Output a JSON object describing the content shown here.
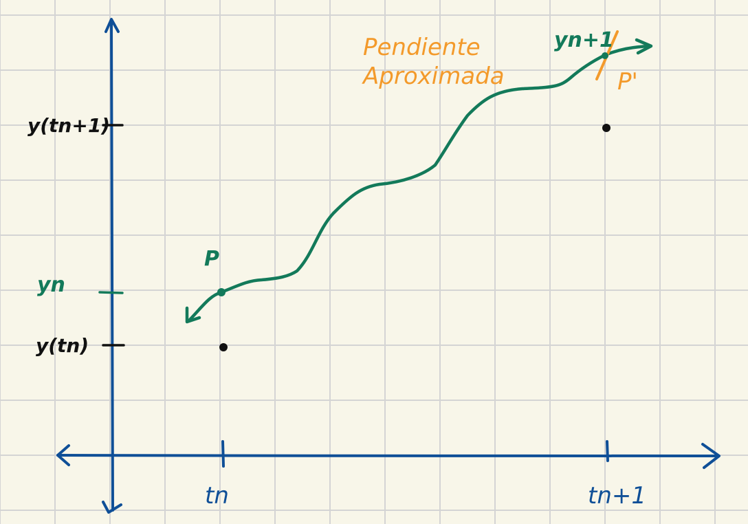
{
  "labels": {
    "y_tn1": "y(tn+1)",
    "y_n": "yn",
    "y_tn": "y(tn)",
    "p": "P",
    "p_prime": "P'",
    "y_n1": "yn+1",
    "slope_line1": "Pendiente",
    "slope_line2": "Aproximada",
    "t_n": "tn",
    "t_n1": "tn+1"
  },
  "colors": {
    "grid": "#d4d4d4",
    "axes": "#0f4f97",
    "curve": "#137a5a",
    "annotation": "#f39a2b",
    "ink": "#111111",
    "background": "#f8f6e9"
  }
}
